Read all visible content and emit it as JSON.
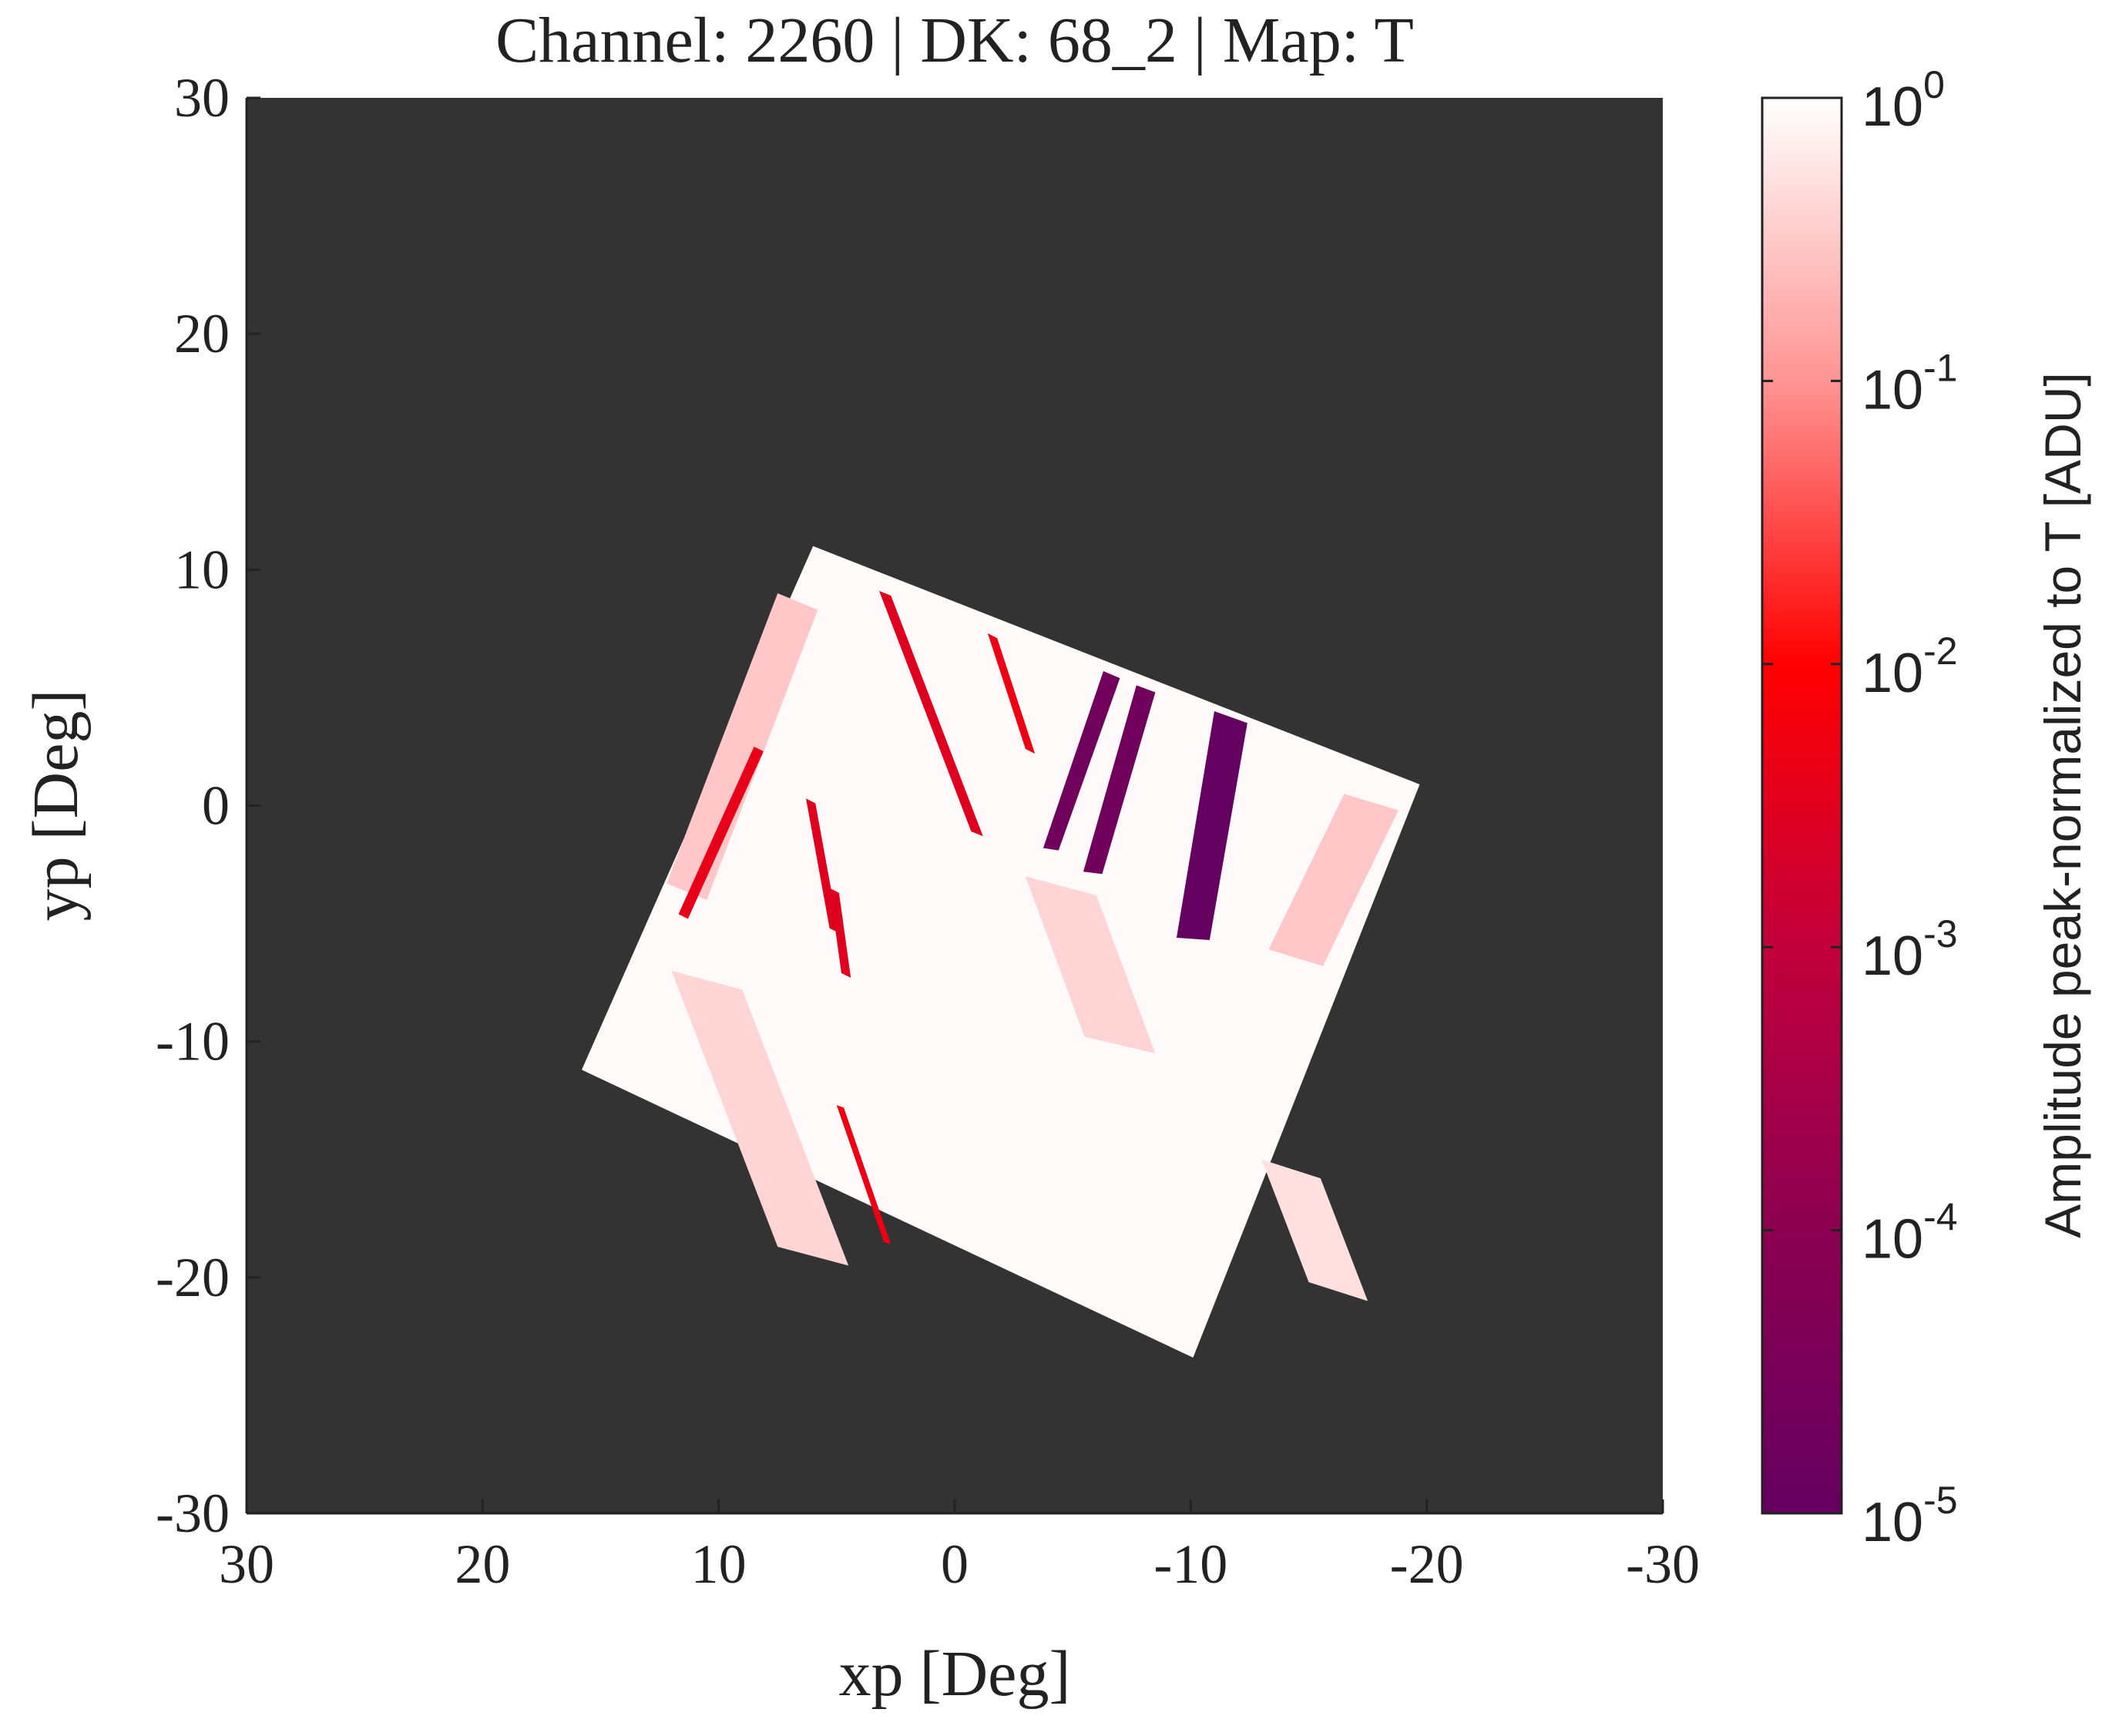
{
  "chart_data": {
    "type": "heatmap",
    "title": "Channel: 2260 | DK: 68_2 | Map: T",
    "x_label": "xp [Deg]",
    "y_label": "yp [Deg]",
    "colorbar_label": "Amplitude peak-normalized to T [ADU]",
    "xlim": [
      30,
      -30
    ],
    "ylim": [
      -30,
      30
    ],
    "xticks": [
      30,
      20,
      10,
      0,
      -10,
      -20,
      -30
    ],
    "yticks": [
      -30,
      -20,
      -10,
      0,
      10,
      20,
      30
    ],
    "background": "#333333",
    "color_scale": "log",
    "clim": [
      1e-05,
      1
    ],
    "colormap": [
      "#640060",
      "#8c0050",
      "#c2003c",
      "#ff0000",
      "#ff9494",
      "#ffffff"
    ],
    "colorbar_ticks": [
      {
        "value": 1,
        "label": "10",
        "exponent": "0"
      },
      {
        "value": 0.1,
        "label": "10",
        "exponent": "-1"
      },
      {
        "value": 0.01,
        "label": "10",
        "exponent": "-2"
      },
      {
        "value": 0.001,
        "label": "10",
        "exponent": "-3"
      },
      {
        "value": 0.0001,
        "label": "10",
        "exponent": "-4"
      },
      {
        "value": 1e-05,
        "label": "10",
        "exponent": "-5"
      }
    ],
    "regions": [
      {
        "points": [
          [
            6.0,
            11.0
          ],
          [
            -19.7,
            0.9
          ],
          [
            -10.1,
            -23.4
          ],
          [
            15.8,
            -11.2
          ]
        ],
        "value": 0.9
      },
      {
        "points": [
          [
            7.5,
            9.0
          ],
          [
            5.8,
            8.3
          ],
          [
            10.5,
            -4.0
          ],
          [
            12.2,
            -3.3
          ]
        ],
        "value": 0.3
      },
      {
        "points": [
          [
            -16.5,
            0.5
          ],
          [
            -18.8,
            -0.2
          ],
          [
            -15.6,
            -6.8
          ],
          [
            -13.3,
            -6.1
          ]
        ],
        "value": 0.3
      },
      {
        "points": [
          [
            12.0,
            -7.0
          ],
          [
            9.0,
            -7.8
          ],
          [
            4.5,
            -19.5
          ],
          [
            7.5,
            -18.7
          ]
        ],
        "value": 0.4
      },
      {
        "points": [
          [
            -3.0,
            -3.0
          ],
          [
            -6.0,
            -3.8
          ],
          [
            -8.5,
            -10.5
          ],
          [
            -5.5,
            -9.8
          ]
        ],
        "value": 0.4
      },
      {
        "points": [
          [
            -13.0,
            -15.0
          ],
          [
            -15.5,
            -15.8
          ],
          [
            -17.5,
            -21.0
          ],
          [
            -15.0,
            -20.2
          ]
        ],
        "value": 0.5
      },
      {
        "points": [
          [
            3.2,
            9.1
          ],
          [
            2.7,
            8.9
          ],
          [
            -1.2,
            -1.3
          ],
          [
            -0.7,
            -1.1
          ]
        ],
        "value": 0.003
      },
      {
        "points": [
          [
            -1.4,
            7.3
          ],
          [
            -1.8,
            7.1
          ],
          [
            -3.4,
            2.2
          ],
          [
            -3.0,
            2.4
          ]
        ],
        "value": 0.005
      },
      {
        "points": [
          [
            8.5,
            2.5
          ],
          [
            8.1,
            2.3
          ],
          [
            11.3,
            -4.8
          ],
          [
            11.7,
            -4.6
          ]
        ],
        "value": 0.004
      },
      {
        "points": [
          [
            6.3,
            0.3
          ],
          [
            5.9,
            0.1
          ],
          [
            4.9,
            -5.4
          ],
          [
            5.3,
            -5.2
          ]
        ],
        "value": 0.003
      },
      {
        "points": [
          [
            5.3,
            -3.5
          ],
          [
            4.9,
            -3.7
          ],
          [
            4.4,
            -7.3
          ],
          [
            4.8,
            -7.1
          ]
        ],
        "value": 0.003
      },
      {
        "points": [
          [
            3.0,
            -18.5
          ],
          [
            2.7,
            -18.6
          ],
          [
            4.7,
            -12.8
          ],
          [
            5.0,
            -12.7
          ]
        ],
        "value": 0.005
      },
      {
        "points": [
          [
            -6.3,
            5.7
          ],
          [
            -7.0,
            5.4
          ],
          [
            -4.4,
            -1.9
          ],
          [
            -3.75,
            -1.8
          ]
        ],
        "value": 2e-05
      },
      {
        "points": [
          [
            -7.7,
            5.1
          ],
          [
            -8.5,
            4.8
          ],
          [
            -6.25,
            -2.9
          ],
          [
            -5.45,
            -2.8
          ]
        ],
        "value": 2e-05
      },
      {
        "points": [
          [
            -11.0,
            4.0
          ],
          [
            -12.4,
            3.5
          ],
          [
            -10.8,
            -5.7
          ],
          [
            -9.4,
            -5.6
          ]
        ],
        "value": 1e-05
      }
    ]
  }
}
